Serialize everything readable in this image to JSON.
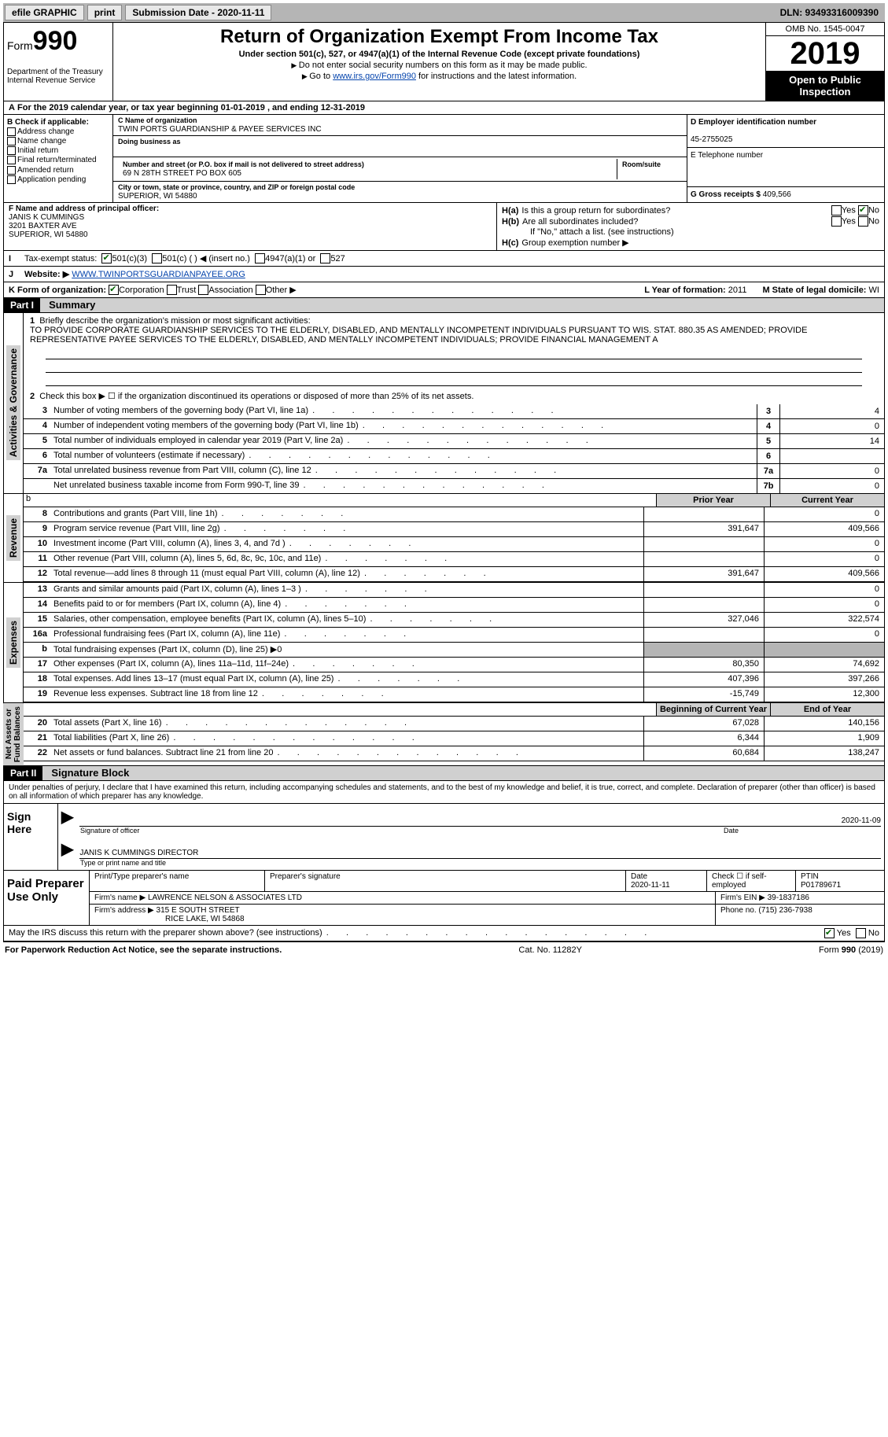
{
  "topbar": {
    "efile": "efile GRAPHIC",
    "print": "print",
    "subm_label": "Submission Date - 2020-11-11",
    "dln": "DLN: 93493316009390"
  },
  "header": {
    "form_word": "Form",
    "form_num": "990",
    "dept": "Department of the Treasury\nInternal Revenue Service",
    "title": "Return of Organization Exempt From Income Tax",
    "subtitle": "Under section 501(c), 527, or 4947(a)(1) of the Internal Revenue Code (except private foundations)",
    "inst1": "Do not enter social security numbers on this form as it may be made public.",
    "inst2_pre": "Go to ",
    "inst2_link": "www.irs.gov/Form990",
    "inst2_post": " for instructions and the latest information.",
    "omb": "OMB No. 1545-0047",
    "year": "2019",
    "otp": "Open to Public Inspection"
  },
  "A": {
    "cal": "For the 2019 calendar year, or tax year beginning 01-01-2019   , and ending 12-31-2019"
  },
  "B": {
    "hdr": "B Check if applicable:",
    "items": [
      "Address change",
      "Name change",
      "Initial return",
      "Final return/terminated",
      "Amended return",
      "Application pending"
    ]
  },
  "C": {
    "name_lbl": "C Name of organization",
    "name": "TWIN PORTS GUARDIANSHIP & PAYEE SERVICES INC",
    "dba_lbl": "Doing business as",
    "street_lbl": "Number and street (or P.O. box if mail is not delivered to street address)",
    "street": "69 N 28TH STREET PO BOX 605",
    "room_lbl": "Room/suite",
    "city_lbl": "City or town, state or province, country, and ZIP or foreign postal code",
    "city": "SUPERIOR, WI  54880"
  },
  "D": {
    "lbl": "D Employer identification number",
    "val": "45-2755025"
  },
  "E": {
    "lbl": "E Telephone number"
  },
  "G": {
    "lbl": "G Gross receipts $",
    "val": "409,566"
  },
  "F": {
    "lbl": "F  Name and address of principal officer:",
    "name": "JANIS K CUMMINGS",
    "addr1": "3201 BAXTER AVE",
    "addr2": "SUPERIOR, WI  54880"
  },
  "H": {
    "a": "Is this a group return for subordinates?",
    "b": "Are all subordinates included?",
    "bnote": "If \"No,\" attach a list. (see instructions)",
    "c": "Group exemption number ▶"
  },
  "I": {
    "lbl": "Tax-exempt status:",
    "opts": [
      "501(c)(3)",
      "501(c) (  ) ◀ (insert no.)",
      "4947(a)(1) or",
      "527"
    ]
  },
  "J": {
    "lbl": "Website: ▶",
    "val": "WWW.TWINPORTSGUARDIANPAYEE.ORG"
  },
  "K": {
    "lbl": "K Form of organization:",
    "opts": [
      "Corporation",
      "Trust",
      "Association",
      "Other ▶"
    ]
  },
  "L": {
    "lbl": "L Year of formation:",
    "val": "2011"
  },
  "M": {
    "lbl": "M State of legal domicile:",
    "val": "WI"
  },
  "part1": {
    "num": "Part I",
    "title": "Summary"
  },
  "summary": {
    "q1_lbl": "Briefly describe the organization's mission or most significant activities:",
    "q1_txt": "TO PROVIDE CORPORATE GUARDIANSHIP SERVICES TO THE ELDERLY, DISABLED, AND MENTALLY INCOMPETENT INDIVIDUALS PURSUANT TO WIS. STAT. 880.35 AS AMENDED; PROVIDE REPRESENTATIVE PAYEE SERVICES TO THE ELDERLY, DISABLED, AND MENTALLY INCOMPETENT INDIVIDUALS; PROVIDE FINANCIAL MANAGEMENT A",
    "q2": "Check this box ▶ ☐  if the organization discontinued its operations or disposed of more than 25% of its net assets.",
    "gov_label": "Activities & Governance",
    "rows_gov": [
      {
        "n": "3",
        "t": "Number of voting members of the governing body (Part VI, line 1a)",
        "box": "3",
        "v": "4"
      },
      {
        "n": "4",
        "t": "Number of independent voting members of the governing body (Part VI, line 1b)",
        "box": "4",
        "v": "0"
      },
      {
        "n": "5",
        "t": "Total number of individuals employed in calendar year 2019 (Part V, line 2a)",
        "box": "5",
        "v": "14"
      },
      {
        "n": "6",
        "t": "Total number of volunteers (estimate if necessary)",
        "box": "6",
        "v": ""
      },
      {
        "n": "7a",
        "t": "Total unrelated business revenue from Part VIII, column (C), line 12",
        "box": "7a",
        "v": "0"
      },
      {
        "n": "",
        "t": "Net unrelated business taxable income from Form 990-T, line 39",
        "box": "7b",
        "v": "0"
      }
    ],
    "col_prior": "Prior Year",
    "col_curr": "Current Year",
    "rev_label": "Revenue",
    "rows_rev": [
      {
        "n": "8",
        "t": "Contributions and grants (Part VIII, line 1h)",
        "p": "",
        "c": "0"
      },
      {
        "n": "9",
        "t": "Program service revenue (Part VIII, line 2g)",
        "p": "391,647",
        "c": "409,566"
      },
      {
        "n": "10",
        "t": "Investment income (Part VIII, column (A), lines 3, 4, and 7d )",
        "p": "",
        "c": "0"
      },
      {
        "n": "11",
        "t": "Other revenue (Part VIII, column (A), lines 5, 6d, 8c, 9c, 10c, and 11e)",
        "p": "",
        "c": "0"
      },
      {
        "n": "12",
        "t": "Total revenue—add lines 8 through 11 (must equal Part VIII, column (A), line 12)",
        "p": "391,647",
        "c": "409,566"
      }
    ],
    "exp_label": "Expenses",
    "rows_exp": [
      {
        "n": "13",
        "t": "Grants and similar amounts paid (Part IX, column (A), lines 1–3 )",
        "p": "",
        "c": "0"
      },
      {
        "n": "14",
        "t": "Benefits paid to or for members (Part IX, column (A), line 4)",
        "p": "",
        "c": "0"
      },
      {
        "n": "15",
        "t": "Salaries, other compensation, employee benefits (Part IX, column (A), lines 5–10)",
        "p": "327,046",
        "c": "322,574"
      },
      {
        "n": "16a",
        "t": "Professional fundraising fees (Part IX, column (A), line 11e)",
        "p": "",
        "c": "0"
      },
      {
        "n": "b",
        "t": "Total fundraising expenses (Part IX, column (D), line 25) ▶0",
        "shaded": true
      },
      {
        "n": "17",
        "t": "Other expenses (Part IX, column (A), lines 11a–11d, 11f–24e)",
        "p": "80,350",
        "c": "74,692"
      },
      {
        "n": "18",
        "t": "Total expenses. Add lines 13–17 (must equal Part IX, column (A), line 25)",
        "p": "407,396",
        "c": "397,266"
      },
      {
        "n": "19",
        "t": "Revenue less expenses. Subtract line 18 from line 12",
        "p": "-15,749",
        "c": "12,300"
      }
    ],
    "na_label": "Net Assets or\nFund Balances",
    "col_beg": "Beginning of Current Year",
    "col_end": "End of Year",
    "rows_na": [
      {
        "n": "20",
        "t": "Total assets (Part X, line 16)",
        "p": "67,028",
        "c": "140,156"
      },
      {
        "n": "21",
        "t": "Total liabilities (Part X, line 26)",
        "p": "6,344",
        "c": "1,909"
      },
      {
        "n": "22",
        "t": "Net assets or fund balances. Subtract line 21 from line 20",
        "p": "60,684",
        "c": "138,247"
      }
    ]
  },
  "part2": {
    "num": "Part II",
    "title": "Signature Block"
  },
  "penalty": "Under penalties of perjury, I declare that I have examined this return, including accompanying schedules and statements, and to the best of my knowledge and belief, it is true, correct, and complete. Declaration of preparer (other than officer) is based on all information of which preparer has any knowledge.",
  "sign": {
    "label": "Sign Here",
    "date": "2020-11-09",
    "sig_lbl": "Signature of officer",
    "date_lbl": "Date",
    "name": "JANIS K CUMMINGS  DIRECTOR",
    "name_lbl": "Type or print name and title"
  },
  "paid": {
    "label": "Paid Preparer Use Only",
    "h1": "Print/Type preparer's name",
    "h2": "Preparer's signature",
    "h3": "Date",
    "h3v": "2020-11-11",
    "h4": "Check ☐ if self-employed",
    "h5": "PTIN",
    "h5v": "P01789671",
    "firm_lbl": "Firm's name   ▶",
    "firm": "LAWRENCE NELSON & ASSOCIATES LTD",
    "ein_lbl": "Firm's EIN ▶",
    "ein": "39-1837186",
    "addr_lbl": "Firm's address ▶",
    "addr1": "315 E SOUTH STREET",
    "addr2": "RICE LAKE, WI  54868",
    "phone_lbl": "Phone no.",
    "phone": "(715) 236-7938"
  },
  "may_discuss": "May the IRS discuss this return with the preparer shown above? (see instructions)",
  "footer": {
    "left": "For Paperwork Reduction Act Notice, see the separate instructions.",
    "mid": "Cat. No. 11282Y",
    "right": "Form 990 (2019)"
  }
}
